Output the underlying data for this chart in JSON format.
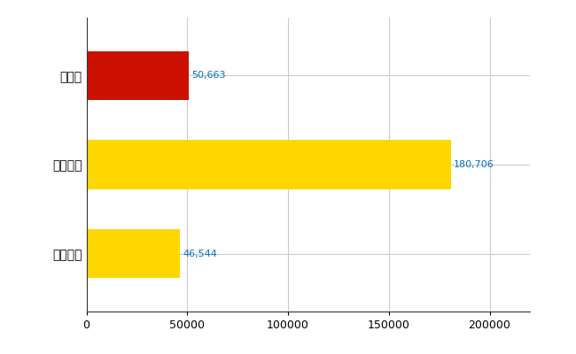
{
  "categories": [
    "全国平均",
    "全国最大",
    "京都府"
  ],
  "values": [
    46544,
    180706,
    50663
  ],
  "bar_colors": [
    "#FFD700",
    "#FFD700",
    "#CC1100"
  ],
  "value_labels": [
    "46,544",
    "180,706",
    "50,663"
  ],
  "xlim": [
    0,
    220000
  ],
  "xticks": [
    0,
    50000,
    100000,
    150000,
    200000
  ],
  "xtick_labels": [
    "0",
    "50000",
    "100000",
    "150000",
    "200000"
  ],
  "background_color": "#FFFFFF",
  "grid_color": "#CCCCCC",
  "label_color": "#0070C0",
  "bar_height": 0.55,
  "figsize": [
    6.5,
    4.0
  ],
  "dpi": 100
}
